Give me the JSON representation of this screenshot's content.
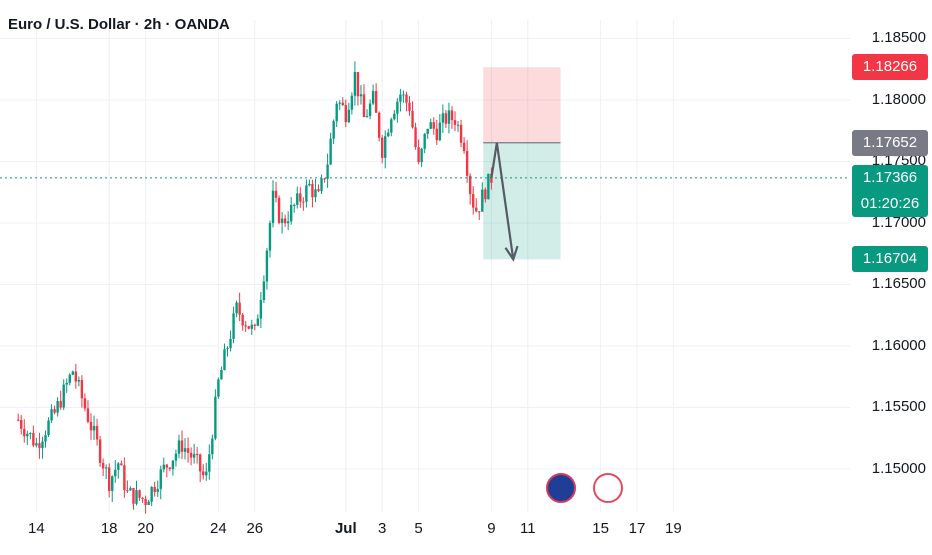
{
  "title": "Euro / U.S. Dollar · 2h · OANDA",
  "chart_data": {
    "type": "candlestick",
    "symbol": "EURUSD",
    "interval": "2h",
    "x_ticks": [
      "14",
      "18",
      "20",
      "24",
      "26",
      "Jul",
      "3",
      "5",
      "9",
      "11",
      "15",
      "17",
      "19"
    ],
    "y_ticks": [
      "1.18500",
      "1.18000",
      "1.17500",
      "1.17000",
      "1.16500",
      "1.16000",
      "1.15500",
      "1.15000"
    ],
    "ylim": [
      1.1465,
      1.1865
    ],
    "last_price": 1.17366,
    "countdown": "01:20:26",
    "trade_setup": {
      "stop_loss": 1.18266,
      "entry": 1.17652,
      "target": 1.16704
    },
    "price_tags": [
      {
        "label": "1.18266",
        "value": 1.18266,
        "color": "#f23645"
      },
      {
        "label": "1.17652",
        "value": 1.17652,
        "color": "#787b86"
      },
      {
        "label": "1.17366",
        "value": 1.17366,
        "color": "#089981"
      },
      {
        "label": "1.16704",
        "value": 1.16704,
        "color": "#089981"
      }
    ],
    "path_points": [
      [
        13.0,
        1.154
      ],
      [
        14.0,
        1.152
      ],
      [
        15.0,
        1.1545
      ],
      [
        16.0,
        1.158
      ],
      [
        17.0,
        1.1535
      ],
      [
        18.0,
        1.149
      ],
      [
        18.5,
        1.1505
      ],
      [
        19.0,
        1.148
      ],
      [
        20.0,
        1.1475
      ],
      [
        21.0,
        1.15
      ],
      [
        22.0,
        1.152
      ],
      [
        22.8,
        1.1505
      ],
      [
        23.3,
        1.149
      ],
      [
        24.0,
        1.157
      ],
      [
        24.5,
        1.16
      ],
      [
        25.0,
        1.163
      ],
      [
        25.5,
        1.162
      ],
      [
        26.0,
        1.161
      ],
      [
        26.5,
        1.166
      ],
      [
        27.0,
        1.172
      ],
      [
        27.5,
        1.17
      ],
      [
        28.0,
        1.171
      ],
      [
        28.5,
        1.172
      ],
      [
        29.0,
        1.173
      ],
      [
        29.5,
        1.172
      ],
      [
        30.0,
        1.175
      ],
      [
        30.5,
        1.18
      ],
      [
        31.0,
        1.179
      ],
      [
        31.5,
        1.182
      ],
      [
        32.0,
        1.1785
      ],
      [
        32.5,
        1.18
      ],
      [
        33.0,
        1.176
      ],
      [
        33.5,
        1.179
      ],
      [
        34.0,
        1.1805
      ],
      [
        34.5,
        1.1795
      ],
      [
        35.0,
        1.1745
      ],
      [
        35.5,
        1.178
      ],
      [
        36.0,
        1.1775
      ],
      [
        36.5,
        1.1785
      ],
      [
        37.0,
        1.1785
      ],
      [
        37.5,
        1.1765
      ],
      [
        37.9,
        1.172
      ],
      [
        38.2,
        1.171
      ],
      [
        38.6,
        1.1725
      ],
      [
        39.0,
        1.1737
      ]
    ],
    "projection": {
      "from": [
        39.0,
        1.17366
      ],
      "peak": [
        39.3,
        1.17652
      ],
      "to": [
        40.2,
        1.16704
      ]
    },
    "x_axis": {
      "start_day": 12,
      "ticks_day": [
        14,
        18,
        20,
        24,
        26,
        31,
        33,
        35,
        39,
        41,
        45,
        47,
        49
      ]
    }
  }
}
